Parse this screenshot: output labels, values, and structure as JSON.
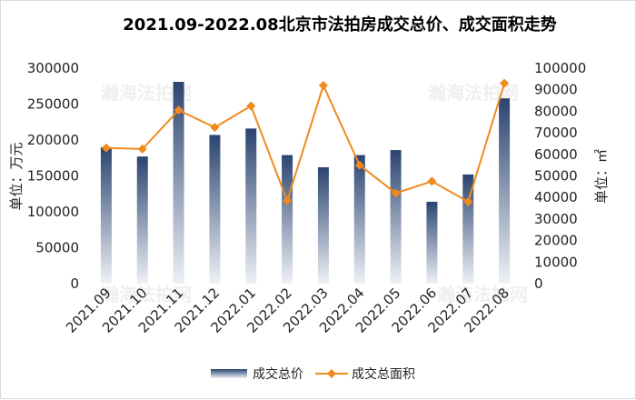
{
  "chart_data": {
    "type": "bar+line",
    "title": "2021.09-2022.08北京市法拍房成交总价、成交面积走势",
    "categories": [
      "2021.09",
      "2021.10",
      "2021.11",
      "2021.12",
      "2022.01",
      "2022.02",
      "2022.03",
      "2022.04",
      "2022.05",
      "2022.06",
      "2022.07",
      "2022.08"
    ],
    "series": [
      {
        "name": "成交总价",
        "type": "bar",
        "axis": "left",
        "values": [
          190000,
          177000,
          281000,
          207000,
          216000,
          179000,
          162000,
          179000,
          186000,
          114000,
          152000,
          258000
        ]
      },
      {
        "name": "成交总面积",
        "type": "line",
        "axis": "right",
        "values": [
          63000,
          62500,
          80500,
          72500,
          82500,
          38500,
          92000,
          55000,
          42000,
          47500,
          38000,
          93000
        ]
      }
    ],
    "y_left": {
      "label": "单位：万元",
      "ylim": [
        0,
        300000
      ],
      "ticks": [
        "0",
        "50000",
        "100000",
        "150000",
        "200000",
        "250000",
        "300000"
      ]
    },
    "y_right": {
      "label": "单位：㎡",
      "ylim": [
        0,
        100000
      ],
      "ticks": [
        "0",
        "10000",
        "20000",
        "30000",
        "40000",
        "50000",
        "60000",
        "70000",
        "80000",
        "90000",
        "100000"
      ]
    },
    "grid": false,
    "legend_position": "bottom",
    "colors": {
      "bar_top": "#2b4470",
      "bar_bottom": "#eef1f6",
      "line": "#f08a1c"
    }
  },
  "watermark": {
    "text": "瀚海法拍网"
  }
}
